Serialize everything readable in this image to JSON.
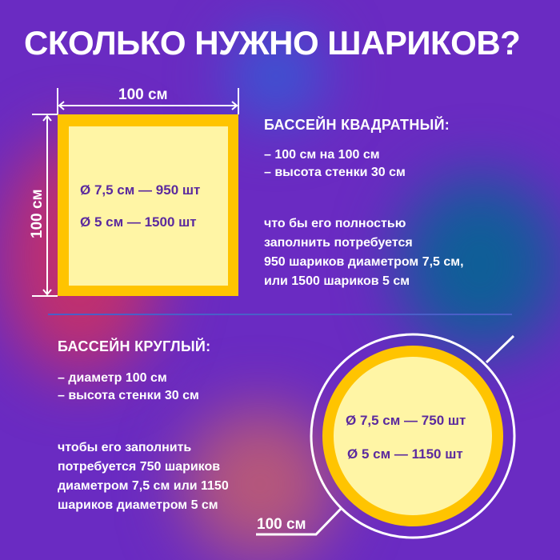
{
  "title": "СКОЛЬКО НУЖНО ШАРИКОВ?",
  "colors": {
    "background": "#6a2bc2",
    "pool_border": "#ffc400",
    "pool_fill": "#fff5a5",
    "inner_text": "#5b2a9e"
  },
  "square_pool": {
    "width_label": "100 см",
    "height_label": "100 см",
    "inside": [
      "Ø 7,5 см — 950 шт",
      "Ø 5 см — 1500 шт"
    ],
    "heading": "БАССЕЙН КВАДРАТНЫЙ:",
    "specs": [
      "– 100 см на 100 см",
      "– высота стенки 30 см"
    ],
    "description": [
      "что бы его полностью",
      "заполнить потребуется",
      "950 шариков диаметром 7,5 см,",
      "или 1500 шариков 5 см"
    ]
  },
  "round_pool": {
    "diameter_label": "100 см",
    "inside": [
      "Ø 7,5 см — 750 шт",
      "Ø 5 см — 1150 шт"
    ],
    "heading": "БАССЕЙН КРУГЛЫЙ:",
    "specs": [
      "– диаметр 100 см",
      "– высота стенки 30 см"
    ],
    "description": [
      "чтобы его заполнить",
      "потребуется 750 шариков",
      "диаметром 7,5 см или 1150",
      "шариков диаметром 5 см"
    ]
  }
}
